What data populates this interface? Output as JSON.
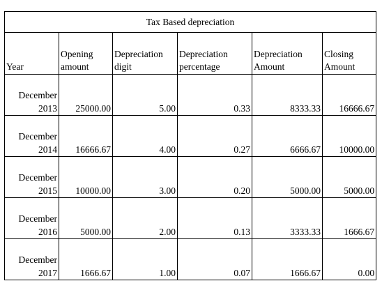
{
  "table": {
    "title": "Tax Based depreciation",
    "columns": [
      {
        "line1": "Year",
        "line2": ""
      },
      {
        "line1": "Opening",
        "line2": "amount"
      },
      {
        "line1": "Depreciation",
        "line2": "digit"
      },
      {
        "line1": "Depreciation",
        "line2": "percentage"
      },
      {
        "line1": "Depreciation",
        "line2": "Amount"
      },
      {
        "line1": "Closing",
        "line2": "Amount"
      }
    ],
    "rows": [
      {
        "month": "December",
        "year": "2013",
        "opening": "25000.00",
        "digit": "5.00",
        "percentage": "0.33",
        "amount": "8333.33",
        "closing": "16666.67"
      },
      {
        "month": "December",
        "year": "2014",
        "opening": "16666.67",
        "digit": "4.00",
        "percentage": "0.27",
        "amount": "6666.67",
        "closing": "10000.00"
      },
      {
        "month": "December",
        "year": "2015",
        "opening": "10000.00",
        "digit": "3.00",
        "percentage": "0.20",
        "amount": "5000.00",
        "closing": "5000.00"
      },
      {
        "month": "December",
        "year": "2016",
        "opening": "5000.00",
        "digit": "2.00",
        "percentage": "0.13",
        "amount": "3333.33",
        "closing": "1666.67"
      },
      {
        "month": "December",
        "year": "2017",
        "opening": "1666.67",
        "digit": "1.00",
        "percentage": "0.07",
        "amount": "1666.67",
        "closing": "0.00"
      }
    ]
  }
}
